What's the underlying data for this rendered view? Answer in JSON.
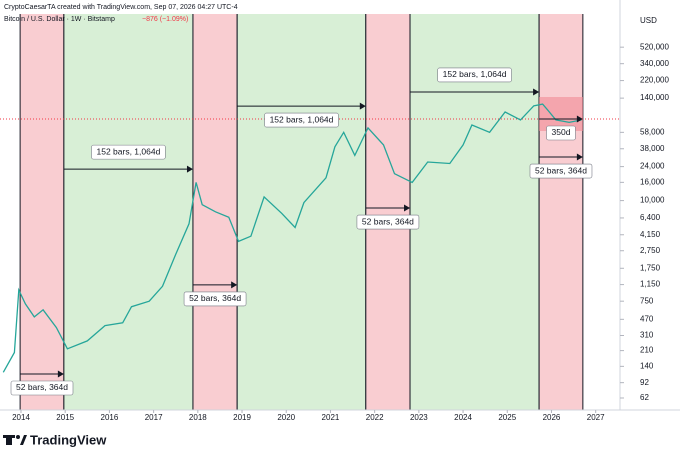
{
  "header": {
    "author": "CryptoCaesarTA created with TradingView.com, Sep 07, 2026 04:27 UTC-4",
    "symbol": "Bitcoin / U.S. Dollar · 1W · Bitstamp",
    "change": "−876 (−1.09%)",
    "currency": "USD"
  },
  "brand": "TradingView",
  "chart_data": {
    "type": "line",
    "log_scale": true,
    "x": [
      2013.6,
      2013.85,
      2013.95,
      2014.1,
      2014.3,
      2014.5,
      2014.8,
      2015.05,
      2015.5,
      2015.9,
      2016.3,
      2016.5,
      2016.9,
      2017.2,
      2017.5,
      2017.8,
      2017.96,
      2018.1,
      2018.4,
      2018.7,
      2018.92,
      2019.2,
      2019.5,
      2019.9,
      2020.2,
      2020.4,
      2020.9,
      2021.1,
      2021.3,
      2021.55,
      2021.85,
      2022.2,
      2022.45,
      2022.85,
      2023.2,
      2023.7,
      2024.0,
      2024.2,
      2024.6,
      2024.95,
      2025.3,
      2025.6,
      2025.8,
      2025.9,
      2026.1,
      2026.4,
      2026.68
    ],
    "series": [
      {
        "color": "#26a69a",
        "values": [
          120,
          200,
          1000,
          700,
          500,
          600,
          380,
          220,
          270,
          400,
          430,
          650,
          750,
          1100,
          2500,
          5500,
          16000,
          9000,
          7500,
          6500,
          3500,
          4000,
          11000,
          7200,
          5000,
          9500,
          18000,
          40000,
          58000,
          32000,
          65000,
          42000,
          20000,
          16000,
          27000,
          26000,
          42000,
          70000,
          58000,
          98000,
          80000,
          115000,
          120000,
          105000,
          80000,
          75000,
          80000
        ]
      }
    ],
    "xlim": [
      2013.525,
      2027.55
    ],
    "xticks": [
      2014,
      2015,
      2016,
      2017,
      2018,
      2019,
      2020,
      2021,
      2022,
      2023,
      2024,
      2025,
      2026,
      2027
    ],
    "ylim": [
      45.5,
      1222000
    ],
    "yticks": [
      62,
      92,
      140,
      210,
      310,
      470,
      750,
      {
        "value": 1150,
        "label": "1,150"
      },
      {
        "value": 1750,
        "label": "1,750"
      },
      {
        "value": 2750,
        "label": "2,750"
      },
      {
        "value": 4150,
        "label": "4,150"
      },
      {
        "value": 6400,
        "label": "6,400"
      },
      {
        "value": 10000,
        "label": "10,000"
      },
      {
        "value": 16000,
        "label": "16,000"
      },
      {
        "value": 24000,
        "label": "24,000"
      },
      {
        "value": 38000,
        "label": "38,000"
      },
      {
        "value": 58000,
        "label": "58,000"
      },
      {
        "value": 140000,
        "label": "140,000"
      },
      {
        "value": 220000,
        "label": "220,000"
      },
      {
        "value": 340000,
        "label": "340,000"
      },
      {
        "value": 520000,
        "label": "520,000"
      }
    ],
    "price_line": {
      "value": 81800,
      "color": "#f23645"
    },
    "regions": [
      {
        "start": 2013.98,
        "end": 2014.97,
        "color": "#f9cdd1"
      },
      {
        "start": 2014.97,
        "end": 2017.89,
        "color": "#d8efd6"
      },
      {
        "start": 2017.89,
        "end": 2018.89,
        "color": "#f9cdd1"
      },
      {
        "start": 2018.89,
        "end": 2021.8,
        "color": "#d8efd6"
      },
      {
        "start": 2021.8,
        "end": 2022.8,
        "color": "#f9cdd1"
      },
      {
        "start": 2022.8,
        "end": 2025.72,
        "color": "#d8efd6"
      },
      {
        "start": 2025.72,
        "end": 2026.71,
        "color": "#f9cdd1"
      }
    ],
    "annotations": [
      {
        "text": "52 bars, 364d",
        "start": 2013.98,
        "end": 2014.97,
        "y": 115,
        "label_position": "below"
      },
      {
        "text": "152 bars, 1,064d",
        "start": 2014.97,
        "end": 2017.89,
        "y": 22500,
        "label_position": "above"
      },
      {
        "text": "52 bars, 364d",
        "start": 2017.89,
        "end": 2018.89,
        "y": 1140,
        "label_position": "below"
      },
      {
        "text": "152 bars, 1,064d",
        "start": 2018.89,
        "end": 2021.8,
        "y": 114000,
        "label_position": "below"
      },
      {
        "text": "52 bars, 364d",
        "start": 2021.8,
        "end": 2022.8,
        "y": 8260,
        "label_position": "below"
      },
      {
        "text": "152 bars, 1,064d",
        "start": 2022.8,
        "end": 2025.72,
        "y": 164000,
        "label_position": "above"
      },
      {
        "text": "350d",
        "start": 2025.72,
        "end": 2026.71,
        "y": 81800,
        "label_position": "below"
      },
      {
        "text": "52 bars, 364d",
        "start": 2025.72,
        "end": 2026.71,
        "y": 30700,
        "label_position": "below"
      }
    ]
  }
}
